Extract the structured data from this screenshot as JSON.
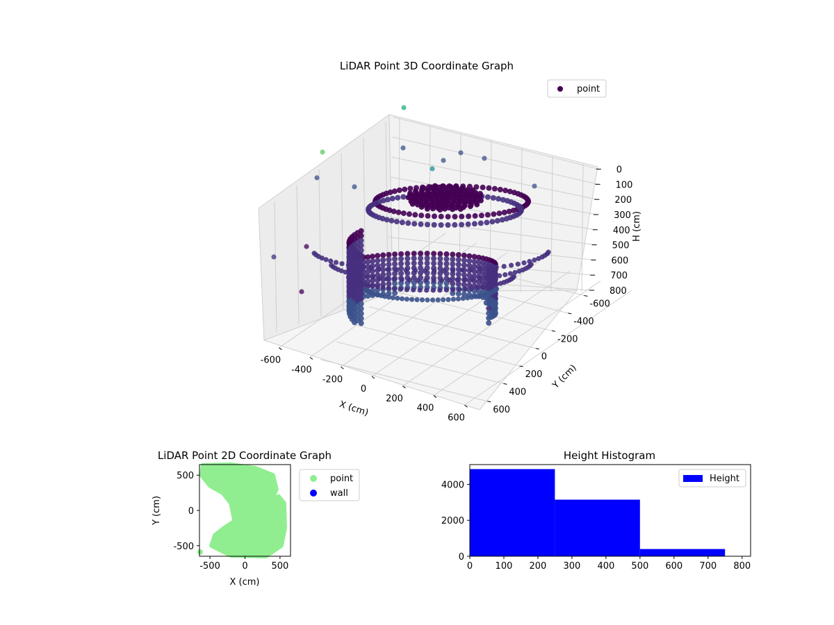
{
  "chart_data": [
    {
      "type": "scatter",
      "title": "LiDAR Point 3D Coordinate Graph",
      "xlabel": "X (cm)",
      "ylabel": "Y (cm)",
      "zlabel": "H (cm)",
      "x_ticks": [
        "-600",
        "-400",
        "-200",
        "0",
        "200",
        "400",
        "600"
      ],
      "y_ticks": [
        "-600",
        "-400",
        "-200",
        "0",
        "200",
        "400",
        "600"
      ],
      "z_ticks": [
        "0",
        "100",
        "200",
        "300",
        "400",
        "500",
        "600",
        "700",
        "800"
      ],
      "xlim": [
        -650,
        650
      ],
      "ylim": [
        -650,
        650
      ],
      "zlim": [
        0,
        850
      ],
      "z_inverted": true,
      "colormap": "viridis",
      "legend": {
        "entries": [
          "point"
        ],
        "position": "top-right"
      },
      "series": [
        {
          "name": "point",
          "color": "#440154"
        }
      ],
      "grid": true
    },
    {
      "type": "scatter",
      "title": "LiDAR Point 2D Coordinate Graph",
      "xlabel": "X (cm)",
      "ylabel": "Y (cm)",
      "x_ticks": [
        "-500",
        "0",
        "500"
      ],
      "y_ticks": [
        "500",
        "0",
        "-500"
      ],
      "xlim": [
        -650,
        650
      ],
      "ylim": [
        -650,
        650
      ],
      "legend": {
        "entries": [
          "point",
          "wall"
        ],
        "position": "outside-right"
      },
      "series": [
        {
          "name": "point",
          "color": "#90ee90"
        },
        {
          "name": "wall",
          "color": "#0000ff"
        }
      ]
    },
    {
      "type": "bar",
      "title": "Height Histogram",
      "categories": [
        "0-250",
        "250-500",
        "500-750"
      ],
      "bins": [
        0,
        250,
        500,
        750
      ],
      "values": [
        4850,
        3150,
        400
      ],
      "x_ticks": [
        "0",
        "100",
        "200",
        "300",
        "400",
        "500",
        "600",
        "700",
        "800"
      ],
      "y_ticks": [
        "0",
        "2000",
        "4000"
      ],
      "xlim": [
        0,
        825
      ],
      "ylim": [
        0,
        5100
      ],
      "legend": {
        "entries": [
          "Height"
        ],
        "position": "top-right"
      },
      "series": [
        {
          "name": "Height",
          "color": "#0000ff"
        }
      ]
    }
  ]
}
